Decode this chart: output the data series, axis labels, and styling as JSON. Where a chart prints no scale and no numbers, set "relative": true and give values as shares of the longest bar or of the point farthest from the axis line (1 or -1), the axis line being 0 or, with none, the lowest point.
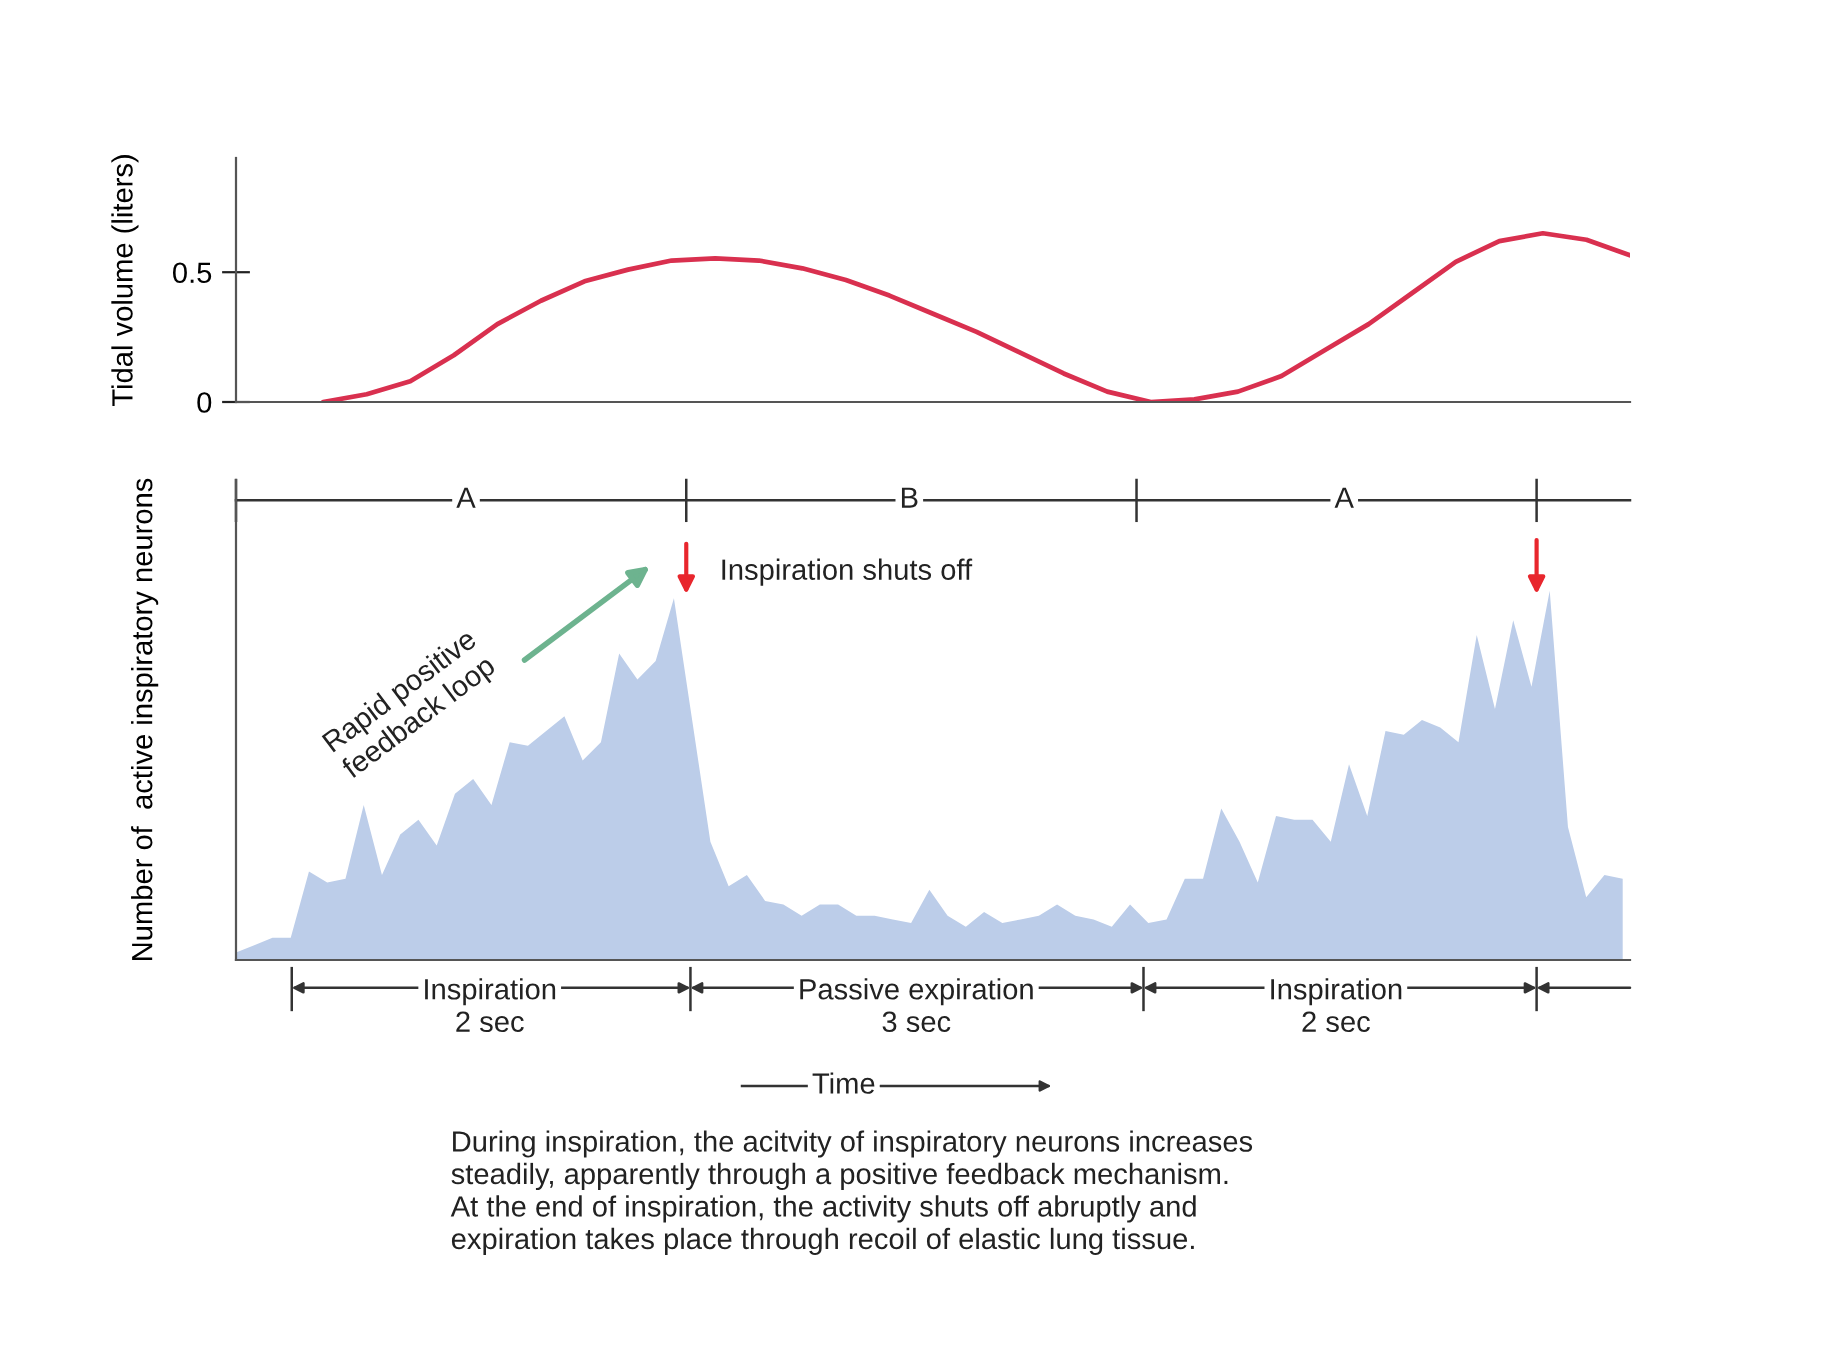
{
  "chart_data": [
    {
      "type": "line",
      "ylabel": "Tidal volume (liters)",
      "categories": [
        null,
        null,
        null,
        null,
        null,
        null,
        null,
        null,
        null,
        null,
        null,
        null,
        null,
        null,
        null,
        null,
        null,
        null,
        null,
        null,
        null,
        null,
        null,
        null,
        null,
        null,
        null,
        null,
        null,
        null,
        null,
        null,
        null
      ],
      "values": [
        null,
        null,
        0,
        0.03,
        0.08,
        0.18,
        0.3,
        0.39,
        0.465,
        0.51,
        0.545,
        0.553,
        0.545,
        0.515,
        0.47,
        0.41,
        0.34,
        0.27,
        0.19,
        0.11,
        0.04,
        0,
        0.01,
        0.04,
        0.1,
        0.2,
        0.3,
        0.42,
        0.54,
        0.62,
        0.65,
        0.625,
        0.565
      ],
      "color": "#d9304f",
      "ylim": [
        0,
        0.94
      ],
      "yticks": [
        0,
        0.5
      ],
      "tick_labels": "y"
    },
    {
      "type": "area",
      "relative": true,
      "ylabel": "Number of  active inspiratory neurons",
      "categories": [
        null,
        null,
        null,
        null,
        null,
        null,
        null,
        null,
        null,
        null,
        null,
        null,
        null,
        null,
        null,
        null,
        null,
        null,
        null,
        null,
        null,
        null,
        null,
        null,
        null,
        null,
        null,
        null,
        null,
        null,
        null,
        null,
        null,
        null,
        null,
        null,
        null,
        null,
        null,
        null,
        null,
        null,
        null,
        null,
        null,
        null,
        null,
        null,
        null,
        null,
        null,
        null,
        null,
        null,
        null,
        null,
        null,
        null,
        null,
        null,
        null,
        null,
        null,
        null,
        null,
        null,
        null,
        null,
        null,
        null,
        null,
        null,
        null,
        null,
        null,
        null,
        null
      ],
      "values": [
        0.02,
        0.04,
        0.06,
        0.06,
        0.24,
        0.21,
        0.22,
        0.42,
        0.23,
        0.34,
        0.38,
        0.31,
        0.45,
        0.49,
        0.42,
        0.59,
        0.58,
        0.62,
        0.66,
        0.54,
        0.59,
        0.83,
        0.76,
        0.81,
        0.98,
        0.65,
        0.32,
        0.2,
        0.23,
        0.16,
        0.15,
        0.12,
        0.15,
        0.15,
        0.12,
        0.12,
        0.11,
        0.1,
        0.19,
        0.12,
        0.09,
        0.13,
        0.1,
        0.11,
        0.12,
        0.15,
        0.12,
        0.11,
        0.09,
        0.15,
        0.1,
        0.11,
        0.22,
        0.22,
        0.41,
        0.32,
        0.21,
        0.39,
        0.38,
        0.38,
        0.32,
        0.53,
        0.39,
        0.62,
        0.61,
        0.65,
        0.63,
        0.59,
        0.88,
        0.68,
        0.92,
        0.74,
        1.0,
        0.36,
        0.17,
        0.23,
        0.22
      ],
      "color": "#bccde9",
      "tick_labels": false,
      "annotations": [
        "A",
        "B",
        "A",
        "Inspiration shuts off",
        "Rapid positive\nfeedback loop",
        "Inspiration\n2 sec",
        "Passive expiration\n3 sec",
        "Inspiration\n2 sec",
        "Time",
        "During inspiration, the acitvity of inspiratory neurons increases\nsteadily, apparently through a positive feedback mechanism.\nAt the end of inspiration, the activity shuts off abruptly and\nexpiration takes place through recoil of elastic lung tissue."
      ]
    }
  ]
}
